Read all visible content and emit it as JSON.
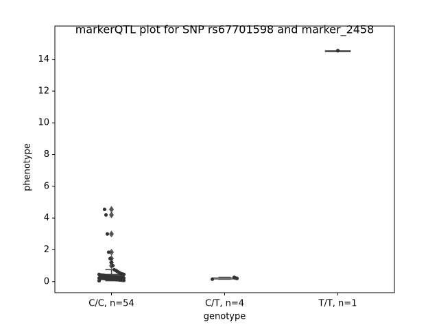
{
  "chart_data": {
    "type": "box",
    "title": "markerQTL plot for SNP rs67701598 and marker_2458",
    "xlabel": "genotype",
    "ylabel": "phenotype",
    "categories": [
      "C/C, n=54",
      "C/T, n=4",
      "T/T, n=1"
    ],
    "boxes": [
      {
        "whislo": 0.05,
        "q1": 0.15,
        "med": 0.25,
        "q3": 0.45,
        "whishi": 0.75,
        "fliers": [
          1.0,
          1.2,
          1.45,
          1.85,
          3.0,
          4.2,
          4.55
        ]
      },
      {
        "whislo": 0.15,
        "q1": 0.18,
        "med": 0.2,
        "q3": 0.23,
        "whishi": 0.27,
        "fliers": []
      },
      {
        "whislo": 14.55,
        "q1": 14.55,
        "med": 14.55,
        "q3": 14.55,
        "whishi": 14.55,
        "fliers": []
      }
    ],
    "points": [
      [
        0.05,
        0.07,
        0.08,
        0.1,
        0.1,
        0.12,
        0.12,
        0.13,
        0.14,
        0.15,
        0.15,
        0.16,
        0.17,
        0.18,
        0.18,
        0.19,
        0.2,
        0.2,
        0.21,
        0.22,
        0.22,
        0.23,
        0.24,
        0.25,
        0.25,
        0.26,
        0.27,
        0.28,
        0.3,
        0.3,
        0.32,
        0.33,
        0.35,
        0.36,
        0.38,
        0.4,
        0.4,
        0.42,
        0.45,
        0.45,
        0.48,
        0.5,
        0.55,
        0.6,
        0.65,
        0.7,
        0.75,
        1.0,
        1.2,
        1.45,
        1.85,
        3.0,
        4.2,
        4.55
      ],
      [
        0.15,
        0.2,
        0.22,
        0.27
      ],
      [
        14.55
      ]
    ],
    "ylim": [
      -0.7,
      16.1
    ],
    "yticks": [
      0,
      2,
      4,
      6,
      8,
      10,
      12,
      14
    ],
    "box_color": "#4a4a4a",
    "point_color": "#333333"
  }
}
